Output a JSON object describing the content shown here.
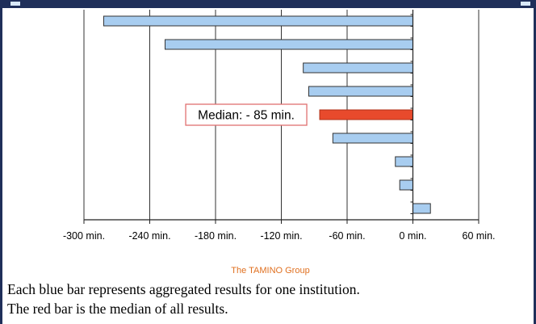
{
  "chart_data": {
    "type": "bar",
    "orientation": "horizontal",
    "x_unit": "min.",
    "xlim": [
      -300,
      60
    ],
    "x_ticks": [
      -300,
      -240,
      -180,
      -120,
      -60,
      0,
      60
    ],
    "x_tick_labels": [
      "-300 min.",
      "-240 min.",
      "-180 min.",
      "-120 min.",
      "-60 min.",
      "0 min.",
      "60 min."
    ],
    "grid": "vertical",
    "values": [
      -282,
      -226,
      -100,
      -95,
      -85,
      -73,
      -16,
      -12,
      16
    ],
    "highlight_index": 4,
    "bar_color": "#a8cdf0",
    "highlight_color": "#e84a2c",
    "annotation": {
      "text": "Median: - 85 min.",
      "border_color": "#e07070",
      "points_to_index": 4
    }
  },
  "source": "The TAMINO Group",
  "caption": {
    "line1": "Each blue bar represents aggregated results for one institution.",
    "line2": "The red bar is the median of all results."
  },
  "colors": {
    "frame": "#1f2f5a",
    "source_text": "#e07020",
    "grid": "#333333"
  }
}
